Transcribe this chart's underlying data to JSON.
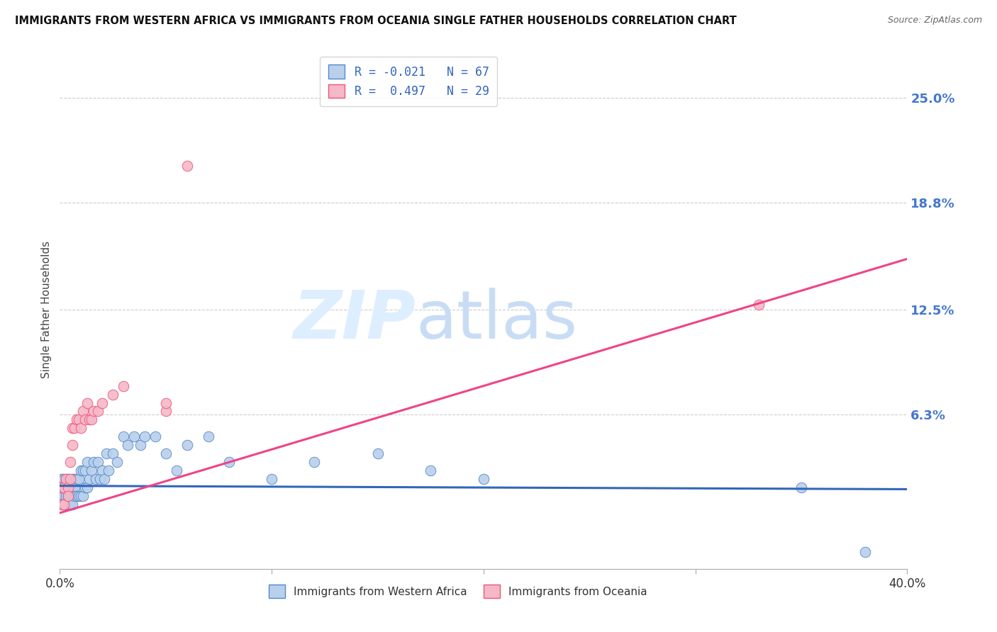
{
  "title": "IMMIGRANTS FROM WESTERN AFRICA VS IMMIGRANTS FROM OCEANIA SINGLE FATHER HOUSEHOLDS CORRELATION CHART",
  "source": "Source: ZipAtlas.com",
  "ylabel": "Single Father Households",
  "xlim": [
    0.0,
    0.4
  ],
  "ylim": [
    -0.028,
    0.278
  ],
  "ytick_labels_right": [
    "6.3%",
    "12.5%",
    "18.8%",
    "25.0%"
  ],
  "ytick_vals_right": [
    0.063,
    0.125,
    0.188,
    0.25
  ],
  "blue_color": "#b8d0ea",
  "pink_color": "#f5b8c8",
  "blue_edge_color": "#5588cc",
  "pink_edge_color": "#ee5577",
  "blue_line_color": "#3366bb",
  "pink_line_color": "#ee4488",
  "legend_blue_label": "R = -0.021   N = 67",
  "legend_pink_label": "R =  0.497   N = 29",
  "legend_bottom_blue": "Immigrants from Western Africa",
  "legend_bottom_pink": "Immigrants from Oceania",
  "blue_line_x": [
    0.0,
    0.4
  ],
  "blue_line_y": [
    0.021,
    0.019
  ],
  "pink_line_x": [
    0.0,
    0.4
  ],
  "pink_line_y": [
    0.005,
    0.155
  ],
  "blue_x": [
    0.001,
    0.001,
    0.001,
    0.001,
    0.002,
    0.002,
    0.002,
    0.002,
    0.003,
    0.003,
    0.003,
    0.003,
    0.004,
    0.004,
    0.004,
    0.004,
    0.005,
    0.005,
    0.005,
    0.006,
    0.006,
    0.006,
    0.007,
    0.007,
    0.007,
    0.008,
    0.008,
    0.009,
    0.009,
    0.01,
    0.01,
    0.011,
    0.011,
    0.012,
    0.012,
    0.013,
    0.013,
    0.014,
    0.015,
    0.016,
    0.017,
    0.018,
    0.019,
    0.02,
    0.021,
    0.022,
    0.023,
    0.025,
    0.027,
    0.03,
    0.032,
    0.035,
    0.038,
    0.04,
    0.045,
    0.05,
    0.055,
    0.06,
    0.07,
    0.08,
    0.1,
    0.12,
    0.15,
    0.175,
    0.2,
    0.35,
    0.38
  ],
  "blue_y": [
    0.025,
    0.02,
    0.015,
    0.01,
    0.025,
    0.02,
    0.015,
    0.01,
    0.025,
    0.02,
    0.015,
    0.01,
    0.025,
    0.02,
    0.015,
    0.01,
    0.02,
    0.015,
    0.01,
    0.025,
    0.02,
    0.01,
    0.025,
    0.02,
    0.015,
    0.025,
    0.015,
    0.025,
    0.015,
    0.03,
    0.015,
    0.03,
    0.015,
    0.03,
    0.02,
    0.035,
    0.02,
    0.025,
    0.03,
    0.035,
    0.025,
    0.035,
    0.025,
    0.03,
    0.025,
    0.04,
    0.03,
    0.04,
    0.035,
    0.05,
    0.045,
    0.05,
    0.045,
    0.05,
    0.05,
    0.04,
    0.03,
    0.045,
    0.05,
    0.035,
    0.025,
    0.035,
    0.04,
    0.03,
    0.025,
    0.02,
    -0.018
  ],
  "pink_x": [
    0.001,
    0.001,
    0.002,
    0.002,
    0.003,
    0.004,
    0.004,
    0.005,
    0.005,
    0.006,
    0.006,
    0.007,
    0.008,
    0.009,
    0.01,
    0.011,
    0.012,
    0.013,
    0.014,
    0.015,
    0.016,
    0.018,
    0.02,
    0.025,
    0.03,
    0.05,
    0.06,
    0.33,
    0.05
  ],
  "pink_y": [
    0.02,
    0.01,
    0.02,
    0.01,
    0.025,
    0.02,
    0.015,
    0.035,
    0.025,
    0.055,
    0.045,
    0.055,
    0.06,
    0.06,
    0.055,
    0.065,
    0.06,
    0.07,
    0.06,
    0.06,
    0.065,
    0.065,
    0.07,
    0.075,
    0.08,
    0.065,
    0.21,
    0.128,
    0.07
  ]
}
